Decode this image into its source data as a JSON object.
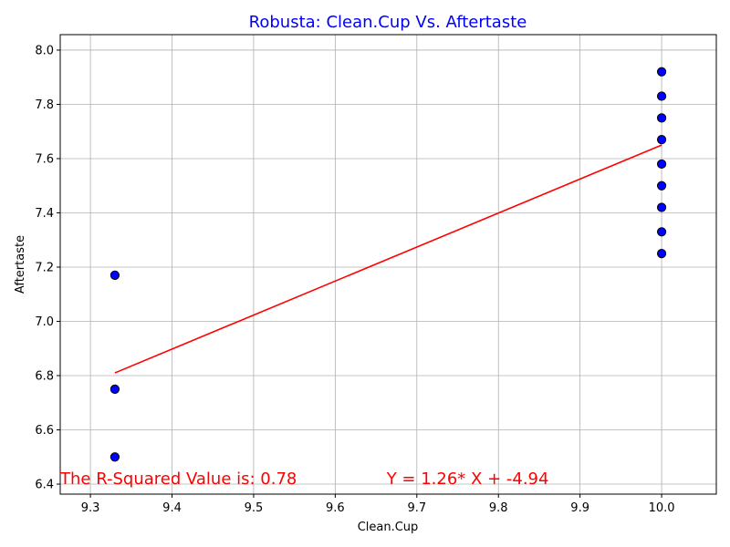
{
  "chart_data": {
    "type": "scatter",
    "title": "Robusta: Clean.Cup Vs. Aftertaste",
    "xlabel": "Clean.Cup",
    "ylabel": "Aftertaste",
    "xlim": [
      9.263,
      10.067
    ],
    "ylim": [
      6.363,
      8.057
    ],
    "x_ticks": [
      9.3,
      9.4,
      9.5,
      9.6,
      9.7,
      9.8,
      9.9,
      10.0
    ],
    "x_tick_labels": [
      "9.3",
      "9.4",
      "9.5",
      "9.6",
      "9.7",
      "9.8",
      "9.9",
      "10.0"
    ],
    "y_ticks": [
      6.4,
      6.6,
      6.8,
      7.0,
      7.2,
      7.4,
      7.6,
      7.8,
      8.0
    ],
    "y_tick_labels": [
      "6.4",
      "6.6",
      "6.8",
      "7.0",
      "7.2",
      "7.4",
      "7.6",
      "7.8",
      "8.0"
    ],
    "grid": true,
    "series": [
      {
        "points": [
          [
            9.33,
            7.17
          ],
          [
            9.33,
            6.75
          ],
          [
            9.33,
            6.5
          ],
          [
            10.0,
            7.92
          ],
          [
            10.0,
            7.83
          ],
          [
            10.0,
            7.75
          ],
          [
            10.0,
            7.67
          ],
          [
            10.0,
            7.58
          ],
          [
            10.0,
            7.5
          ],
          [
            10.0,
            7.42
          ],
          [
            10.0,
            7.33
          ],
          [
            10.0,
            7.25
          ]
        ],
        "marker_color": "#0000ff",
        "edge_color": "#000000"
      }
    ],
    "fit_line": {
      "x": [
        9.33,
        10.0
      ],
      "y": [
        6.81,
        7.65
      ],
      "color": "#ff0000"
    },
    "annotations": [
      {
        "text": "The R-Squared Value is: 0.78",
        "x": 9.263,
        "y": 6.4,
        "color": "#ff0000"
      },
      {
        "text": "Y = 1.26* X + -4.94",
        "x": 9.663,
        "y": 6.4,
        "color": "#ff0000"
      }
    ],
    "colors": {
      "title": "#0000ff",
      "grid": "#b0b0b0",
      "axes": "#000000"
    }
  }
}
